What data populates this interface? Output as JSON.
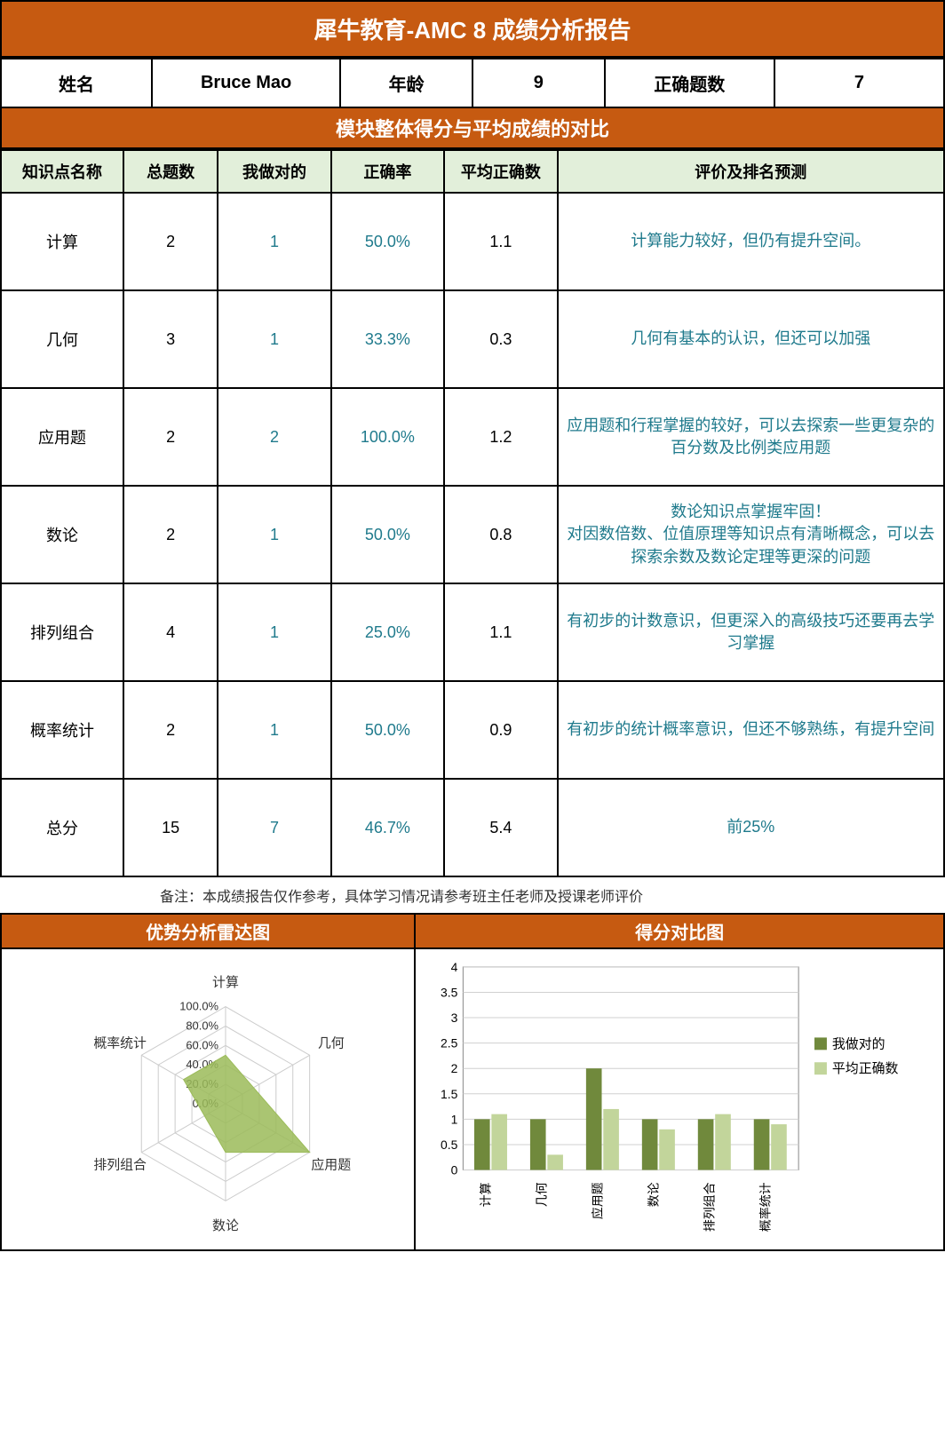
{
  "report_title": "犀牛教育-AMC 8 成绩分析报告",
  "info": {
    "name_label": "姓名",
    "name_value": "Bruce Mao",
    "age_label": "年龄",
    "age_value": "9",
    "correct_label": "正确题数",
    "correct_value": "7"
  },
  "section_compare": "模块整体得分与平均成绩的对比",
  "headers": {
    "topic": "知识点名称",
    "total": "总题数",
    "mine": "我做对的",
    "rate": "正确率",
    "avg": "平均正确数",
    "eval": "评价及排名预测"
  },
  "rows": [
    {
      "topic": "计算",
      "total": "2",
      "mine": "1",
      "rate": "50.0%",
      "avg": "1.1",
      "eval": "计算能力较好，但仍有提升空间。"
    },
    {
      "topic": "几何",
      "total": "3",
      "mine": "1",
      "rate": "33.3%",
      "avg": "0.3",
      "eval": "几何有基本的认识，但还可以加强"
    },
    {
      "topic": "应用题",
      "total": "2",
      "mine": "2",
      "rate": "100.0%",
      "avg": "1.2",
      "eval": "应用题和行程掌握的较好，可以去探索一些更复杂的百分数及比例类应用题"
    },
    {
      "topic": "数论",
      "total": "2",
      "mine": "1",
      "rate": "50.0%",
      "avg": "0.8",
      "eval": "数论知识点掌握牢固！\n对因数倍数、位值原理等知识点有清晰概念，可以去探索余数及数论定理等更深的问题"
    },
    {
      "topic": "排列组合",
      "total": "4",
      "mine": "1",
      "rate": "25.0%",
      "avg": "1.1",
      "eval": "有初步的计数意识，但更深入的高级技巧还要再去学习掌握"
    },
    {
      "topic": "概率统计",
      "total": "2",
      "mine": "1",
      "rate": "50.0%",
      "avg": "0.9",
      "eval": "有初步的统计概率意识，但还不够熟练，有提升空间"
    },
    {
      "topic": "总分",
      "total": "15",
      "mine": "7",
      "rate": "46.7%",
      "avg": "5.4",
      "eval": "前25%"
    }
  ],
  "footnote": "备注：本成绩报告仅作参考，具体学习情况请参考班主任老师及授课老师评价",
  "radar": {
    "title": "优势分析雷达图",
    "axes": [
      "计算",
      "几何",
      "应用题",
      "数论",
      "排列组合",
      "概率统计"
    ],
    "rings": [
      "0.0%",
      "20.0%",
      "40.0%",
      "60.0%",
      "80.0%",
      "100.0%"
    ],
    "values": [
      50,
      33.3,
      100,
      50,
      25,
      50
    ],
    "fill": "#9bbb59",
    "grid": "#cccccc",
    "text_color": "#333333"
  },
  "bar": {
    "title": "得分对比图",
    "categories": [
      "计算",
      "几何",
      "应用题",
      "数论",
      "排列组合",
      "概率统计"
    ],
    "series": [
      {
        "name": "我做对的",
        "color": "#70893c",
        "values": [
          1,
          1,
          2,
          1,
          1,
          1
        ]
      },
      {
        "name": "平均正确数",
        "color": "#c2d59b",
        "values": [
          1.1,
          0.3,
          1.2,
          0.8,
          1.1,
          0.9
        ]
      }
    ],
    "ylim": [
      0,
      4
    ],
    "ystep": 0.5,
    "grid": "#d0d0d0",
    "border": "#888888"
  }
}
